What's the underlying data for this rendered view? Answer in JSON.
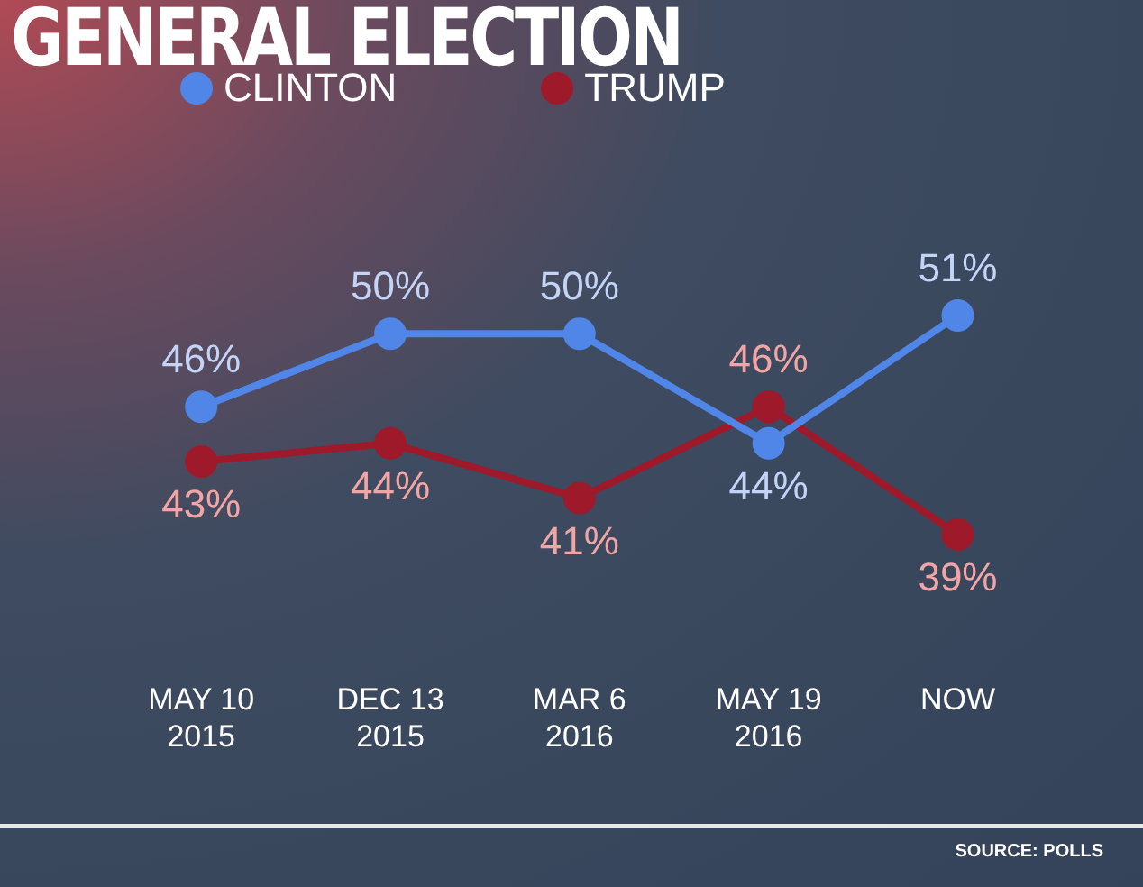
{
  "chart_data": {
    "type": "line",
    "title": "GENERAL ELECTION",
    "categories": [
      "MAY 10\n2015",
      "DEC 13\n2015",
      "MAR 6\n2016",
      "MAY 19\n2016",
      "NOW"
    ],
    "series": [
      {
        "name": "CLINTON",
        "color": "#4f86e8",
        "values": [
          46,
          50,
          50,
          44,
          51
        ],
        "value_labels": [
          "46%",
          "50%",
          "50%",
          "44%",
          "51%"
        ]
      },
      {
        "name": "TRUMP",
        "color": "#9e1a2a",
        "values": [
          43,
          44,
          41,
          46,
          39
        ],
        "value_labels": [
          "43%",
          "44%",
          "41%",
          "46%",
          "39%"
        ]
      }
    ],
    "tick_labels": "x",
    "grid": false,
    "legend": "top left",
    "marker": "circle",
    "line_style": "solid",
    "annotations": [
      "SOURCE: POLLS"
    ]
  }
}
